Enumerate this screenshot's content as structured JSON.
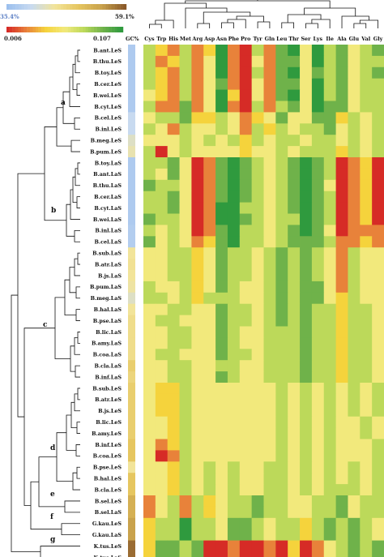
{
  "chart_data": {
    "type": "heatmap",
    "legend": {
      "gc_min": "35.4%",
      "gc_max": "59.1%",
      "rscu_min": "0.006",
      "rscu_max": "0.107",
      "gc_colors": [
        "#9dc0ee",
        "#c8daf0",
        "#f2e49a",
        "#e6c660",
        "#c9a24c",
        "#8a5a2a"
      ],
      "heat_colors": [
        "#d62b26",
        "#e8823a",
        "#f5d33c",
        "#f2e97c",
        "#bcd95a",
        "#6fb24a",
        "#2f9a3e"
      ]
    },
    "gc_header": "GC%",
    "columns": [
      "Cys",
      "Trp",
      "His",
      "Met",
      "Arg",
      "Asp",
      "Asn",
      "Phe",
      "Pro",
      "Tyr",
      "Gln",
      "Leu",
      "Thr",
      "Ser",
      "Lys",
      "Ile",
      "Ala",
      "Glu",
      "Val",
      "Gly"
    ],
    "rows": [
      "B.ant.LeS",
      "B.thu.LeS",
      "B.toy.LeS",
      "B.cer.LeS",
      "B.wei.LeS",
      "B.cyt.LeS",
      "B.cel.LeS",
      "B.inl.LeS",
      "B.meg.LeS",
      "B.pum.LeS",
      "B.toy.LaS",
      "B.ant.LaS",
      "B.thu.LaS",
      "B.cer.LaS",
      "B.cyt.LaS",
      "B.wei.LaS",
      "B.inl.LaS",
      "B.cel.LaS",
      "B.sub.LaS",
      "B.atr.LaS",
      "B.js.LaS",
      "B.pum.LaS",
      "B.meg.LaS",
      "B.hal.LaS",
      "B.pse.LaS",
      "B.lic.LaS",
      "B.amy.LaS",
      "B.coa.LaS",
      "B.cla.LaS",
      "B.inf.LaS",
      "B.sub.LeS",
      "B.atr.LeS",
      "B.js.LeS",
      "B.lic.LeS",
      "B.amy.LeS",
      "B.inf.LeS",
      "B.coa.LeS",
      "B.pse.LeS",
      "B.hal.LeS",
      "B.cla.LeS",
      "B.sel.LeS",
      "B.sel.LaS",
      "G.kau.LeS",
      "G.kau.LaS",
      "K.tus.LeS",
      "K.tus.LaS"
    ],
    "gc_levels": [
      0.08,
      0.08,
      0.08,
      0.08,
      0.08,
      0.08,
      0.2,
      0.2,
      0.3,
      0.35,
      0.08,
      0.08,
      0.08,
      0.08,
      0.08,
      0.08,
      0.1,
      0.1,
      0.4,
      0.42,
      0.4,
      0.38,
      0.3,
      0.4,
      0.45,
      0.45,
      0.45,
      0.45,
      0.55,
      0.5,
      0.55,
      0.55,
      0.55,
      0.55,
      0.55,
      0.6,
      0.6,
      0.4,
      0.6,
      0.6,
      0.72,
      0.72,
      0.8,
      0.8,
      0.95,
      0.95
    ],
    "groups": [
      "a",
      "b",
      "c",
      "d",
      "e",
      "f",
      "g"
    ],
    "values": [
      [
        4,
        2,
        1,
        4,
        1,
        2,
        6,
        1,
        0,
        4,
        1,
        5,
        6,
        3,
        6,
        4,
        5,
        3,
        4,
        5
      ],
      [
        4,
        1,
        2,
        4,
        1,
        3,
        6,
        1,
        0,
        3,
        1,
        5,
        5,
        3,
        6,
        4,
        5,
        3,
        4,
        4
      ],
      [
        4,
        2,
        1,
        4,
        1,
        3,
        6,
        1,
        0,
        4,
        1,
        5,
        6,
        3,
        5,
        4,
        5,
        3,
        4,
        5
      ],
      [
        4,
        2,
        1,
        4,
        1,
        3,
        5,
        1,
        0,
        3,
        1,
        5,
        5,
        3,
        6,
        4,
        5,
        3,
        4,
        4
      ],
      [
        3,
        2,
        1,
        4,
        1,
        3,
        6,
        2,
        0,
        3,
        1,
        5,
        6,
        3,
        6,
        4,
        5,
        3,
        4,
        4
      ],
      [
        4,
        1,
        1,
        5,
        1,
        3,
        6,
        1,
        0,
        4,
        1,
        4,
        5,
        3,
        6,
        5,
        5,
        3,
        4,
        4
      ],
      [
        3,
        4,
        4,
        5,
        2,
        2,
        4,
        3,
        1,
        2,
        3,
        5,
        3,
        3,
        5,
        5,
        2,
        4,
        3,
        4
      ],
      [
        4,
        3,
        1,
        4,
        3,
        3,
        4,
        3,
        1,
        4,
        2,
        4,
        3,
        4,
        4,
        5,
        3,
        4,
        3,
        4
      ],
      [
        3,
        3,
        3,
        4,
        3,
        4,
        3,
        4,
        2,
        4,
        3,
        4,
        4,
        3,
        4,
        4,
        3,
        4,
        3,
        4
      ],
      [
        4,
        0,
        3,
        4,
        3,
        3,
        3,
        3,
        2,
        3,
        3,
        4,
        3,
        4,
        4,
        4,
        2,
        4,
        3,
        4
      ],
      [
        4,
        4,
        5,
        3,
        0,
        1,
        5,
        6,
        5,
        4,
        3,
        4,
        5,
        6,
        5,
        4,
        0,
        1,
        2,
        0
      ],
      [
        4,
        3,
        5,
        3,
        0,
        1,
        5,
        6,
        5,
        4,
        3,
        4,
        5,
        6,
        5,
        4,
        0,
        1,
        2,
        0
      ],
      [
        5,
        4,
        4,
        3,
        0,
        1,
        5,
        6,
        5,
        4,
        3,
        4,
        5,
        6,
        5,
        3,
        0,
        1,
        2,
        0
      ],
      [
        4,
        4,
        5,
        3,
        0,
        1,
        5,
        6,
        5,
        4,
        3,
        4,
        5,
        6,
        5,
        4,
        0,
        1,
        2,
        0
      ],
      [
        4,
        4,
        5,
        3,
        0,
        1,
        6,
        6,
        4,
        4,
        3,
        4,
        5,
        6,
        5,
        4,
        0,
        1,
        2,
        0
      ],
      [
        5,
        4,
        4,
        3,
        0,
        1,
        6,
        6,
        5,
        4,
        3,
        4,
        4,
        6,
        5,
        4,
        0,
        1,
        2,
        0
      ],
      [
        4,
        3,
        4,
        3,
        0,
        1,
        5,
        6,
        4,
        4,
        3,
        4,
        5,
        6,
        5,
        3,
        0,
        1,
        1,
        1
      ],
      [
        5,
        3,
        4,
        3,
        1,
        2,
        5,
        6,
        4,
        4,
        3,
        4,
        5,
        5,
        5,
        4,
        1,
        1,
        2,
        1
      ],
      [
        3,
        3,
        4,
        4,
        2,
        3,
        5,
        4,
        4,
        3,
        4,
        5,
        4,
        5,
        4,
        3,
        1,
        4,
        3,
        3
      ],
      [
        3,
        3,
        4,
        4,
        2,
        3,
        5,
        4,
        4,
        3,
        4,
        5,
        4,
        5,
        4,
        3,
        1,
        4,
        3,
        3
      ],
      [
        3,
        3,
        4,
        4,
        2,
        3,
        5,
        4,
        4,
        3,
        4,
        5,
        4,
        5,
        4,
        3,
        1,
        4,
        3,
        3
      ],
      [
        4,
        3,
        3,
        4,
        2,
        3,
        5,
        4,
        3,
        3,
        4,
        5,
        4,
        5,
        5,
        3,
        1,
        4,
        3,
        3
      ],
      [
        4,
        4,
        3,
        4,
        2,
        4,
        4,
        4,
        3,
        3,
        4,
        5,
        4,
        5,
        5,
        3,
        2,
        4,
        3,
        3
      ],
      [
        3,
        3,
        4,
        4,
        3,
        3,
        5,
        4,
        4,
        3,
        4,
        5,
        4,
        5,
        4,
        4,
        2,
        4,
        4,
        3
      ],
      [
        3,
        4,
        4,
        3,
        3,
        3,
        5,
        4,
        4,
        3,
        4,
        5,
        4,
        5,
        4,
        4,
        2,
        4,
        4,
        3
      ],
      [
        3,
        3,
        4,
        4,
        3,
        3,
        5,
        4,
        3,
        3,
        4,
        4,
        4,
        5,
        4,
        4,
        2,
        4,
        4,
        3
      ],
      [
        3,
        3,
        4,
        4,
        3,
        3,
        5,
        4,
        3,
        3,
        4,
        4,
        4,
        5,
        4,
        4,
        2,
        4,
        4,
        3
      ],
      [
        3,
        4,
        4,
        3,
        3,
        3,
        5,
        4,
        4,
        3,
        4,
        4,
        4,
        5,
        4,
        4,
        2,
        4,
        4,
        3
      ],
      [
        3,
        3,
        4,
        4,
        3,
        3,
        4,
        4,
        3,
        3,
        4,
        4,
        4,
        5,
        4,
        4,
        2,
        4,
        4,
        3
      ],
      [
        3,
        3,
        4,
        4,
        3,
        3,
        5,
        4,
        3,
        3,
        4,
        4,
        4,
        5,
        4,
        4,
        2,
        4,
        4,
        3
      ],
      [
        3,
        2,
        2,
        4,
        3,
        3,
        3,
        3,
        3,
        3,
        3,
        4,
        3,
        4,
        3,
        4,
        3,
        4,
        3,
        4
      ],
      [
        3,
        2,
        2,
        4,
        3,
        3,
        3,
        3,
        3,
        3,
        3,
        4,
        3,
        4,
        3,
        4,
        3,
        4,
        3,
        4
      ],
      [
        3,
        2,
        2,
        4,
        3,
        3,
        3,
        3,
        3,
        3,
        3,
        4,
        3,
        4,
        3,
        4,
        3,
        4,
        3,
        4
      ],
      [
        3,
        3,
        2,
        4,
        3,
        3,
        3,
        3,
        3,
        3,
        3,
        4,
        3,
        4,
        3,
        4,
        3,
        3,
        4,
        3
      ],
      [
        3,
        3,
        2,
        4,
        3,
        3,
        3,
        3,
        3,
        3,
        3,
        4,
        3,
        4,
        3,
        4,
        3,
        3,
        4,
        3
      ],
      [
        3,
        1,
        2,
        4,
        3,
        3,
        3,
        3,
        3,
        3,
        3,
        4,
        3,
        4,
        3,
        4,
        3,
        3,
        3,
        4
      ],
      [
        3,
        0,
        1,
        4,
        3,
        3,
        3,
        3,
        3,
        3,
        3,
        4,
        3,
        4,
        3,
        4,
        3,
        3,
        3,
        4
      ],
      [
        3,
        3,
        2,
        4,
        3,
        4,
        3,
        4,
        3,
        3,
        4,
        4,
        3,
        4,
        3,
        4,
        3,
        4,
        3,
        4
      ],
      [
        3,
        3,
        2,
        4,
        3,
        4,
        3,
        4,
        3,
        3,
        4,
        4,
        3,
        4,
        3,
        4,
        3,
        4,
        3,
        4
      ],
      [
        3,
        3,
        2,
        4,
        3,
        4,
        3,
        4,
        3,
        3,
        4,
        4,
        3,
        4,
        3,
        4,
        4,
        4,
        3,
        4
      ],
      [
        1,
        3,
        4,
        1,
        4,
        2,
        3,
        4,
        4,
        5,
        4,
        4,
        3,
        3,
        4,
        4,
        5,
        3,
        4,
        4
      ],
      [
        1,
        3,
        4,
        1,
        4,
        2,
        3,
        4,
        4,
        5,
        4,
        4,
        3,
        3,
        4,
        4,
        5,
        3,
        4,
        4
      ],
      [
        2,
        4,
        4,
        6,
        4,
        4,
        3,
        5,
        5,
        4,
        3,
        4,
        4,
        2,
        4,
        5,
        4,
        5,
        4,
        3
      ],
      [
        2,
        4,
        4,
        6,
        4,
        4,
        3,
        5,
        5,
        4,
        3,
        4,
        4,
        2,
        4,
        5,
        4,
        5,
        4,
        3
      ],
      [
        2,
        5,
        5,
        4,
        5,
        0,
        0,
        1,
        0,
        0,
        1,
        0,
        2,
        0,
        1,
        3,
        4,
        5,
        4,
        5
      ],
      [
        2,
        5,
        5,
        4,
        5,
        0,
        0,
        1,
        0,
        0,
        1,
        0,
        2,
        0,
        1,
        3,
        4,
        5,
        4,
        5
      ]
    ]
  }
}
